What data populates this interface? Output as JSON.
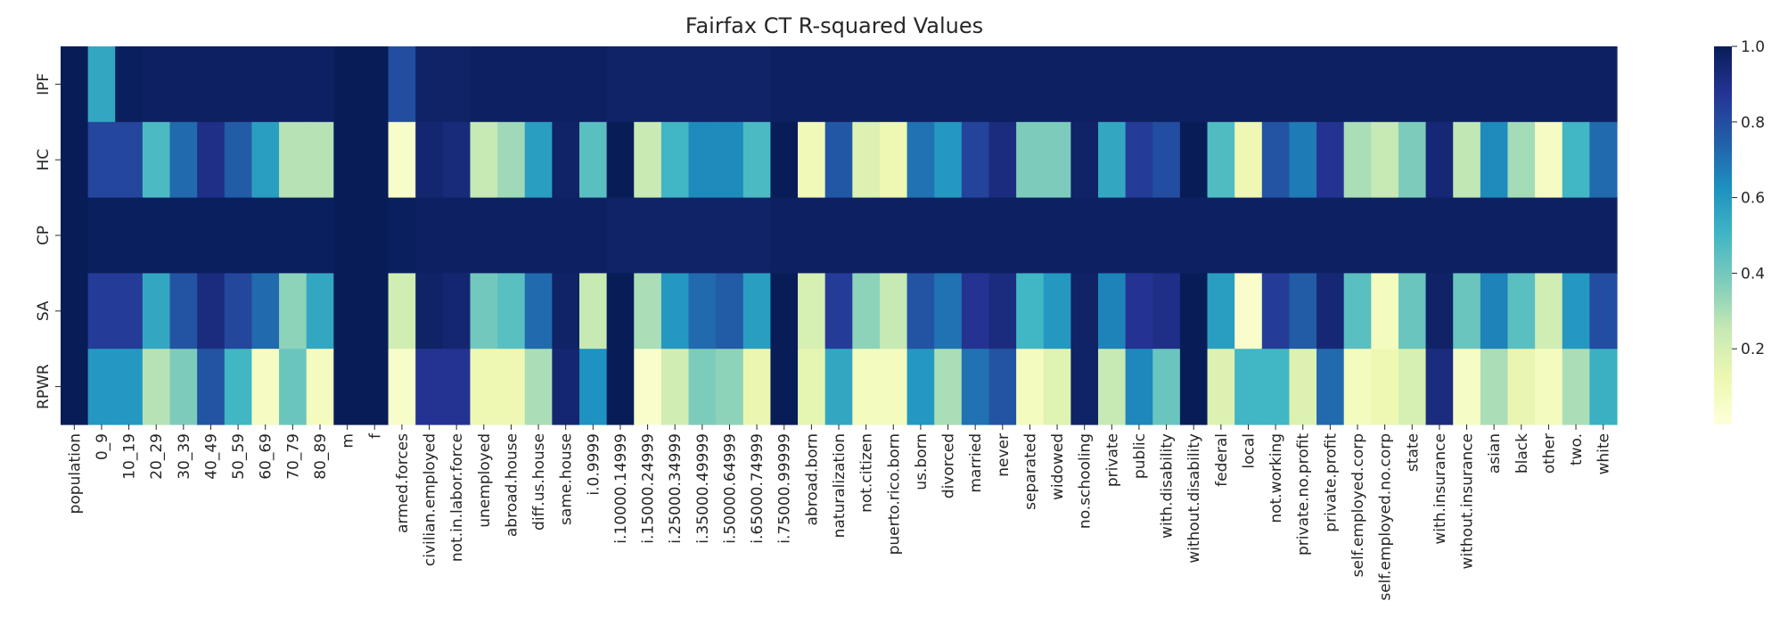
{
  "chart_data": {
    "type": "heatmap",
    "title": "Fairfax CT R-squared Values",
    "xlabel": "",
    "ylabel": "",
    "colormap": "YlGnBu",
    "vmin": 0.0,
    "vmax": 1.0,
    "rows": [
      "IPF",
      "HC",
      "CP",
      "SA",
      "RPWR"
    ],
    "columns": [
      "population",
      "0_9",
      "10_19",
      "20_29",
      "30_39",
      "40_49",
      "50_59",
      "60_69",
      "70_79",
      "80_89",
      "m",
      "f",
      "armed.forces",
      "civilian.employed",
      "not.in.labor.force",
      "unemployed",
      "abroad.house",
      "diff.us.house",
      "same.house",
      "i.0.9999",
      "i.10000.14999",
      "i.15000.24999",
      "i.25000.34999",
      "i.35000.49999",
      "i.50000.64999",
      "i.65000.74999",
      "i.75000.99999",
      "abroad.born",
      "naturalization",
      "not.citizen",
      "puerto.rico.born",
      "us.born",
      "divorced",
      "married",
      "never",
      "separated",
      "widowed",
      "no.schooling",
      "private",
      "public",
      "with.disability",
      "without.disability",
      "federal",
      "local",
      "not.working",
      "private.no.profit",
      "private.profit",
      "self.employed.corp",
      "self.employed.no.corp",
      "state",
      "with.insurance",
      "without.insurance",
      "asian",
      "black",
      "other",
      "two.",
      "white"
    ],
    "values": [
      [
        1.0,
        0.55,
        0.99,
        0.98,
        0.98,
        0.98,
        0.98,
        0.98,
        0.98,
        0.98,
        1.0,
        1.0,
        0.8,
        0.97,
        0.97,
        0.98,
        0.98,
        0.98,
        0.98,
        0.98,
        0.97,
        0.97,
        0.97,
        0.97,
        0.97,
        0.97,
        0.98,
        0.98,
        0.98,
        0.98,
        0.98,
        0.98,
        0.98,
        0.98,
        0.98,
        0.98,
        0.98,
        0.98,
        0.98,
        0.98,
        0.98,
        0.98,
        0.98,
        0.98,
        0.98,
        0.98,
        0.98,
        0.98,
        0.98,
        0.98,
        0.98,
        0.98,
        0.98,
        0.98,
        0.98,
        0.98,
        0.98
      ],
      [
        1.0,
        0.82,
        0.82,
        0.48,
        0.72,
        0.9,
        0.76,
        0.58,
        0.28,
        0.28,
        1.0,
        1.0,
        0.05,
        0.95,
        0.93,
        0.25,
        0.32,
        0.58,
        0.97,
        0.45,
        1.0,
        0.24,
        0.5,
        0.64,
        0.64,
        0.48,
        1.0,
        0.1,
        0.77,
        0.18,
        0.12,
        0.7,
        0.6,
        0.83,
        0.92,
        0.38,
        0.38,
        0.97,
        0.55,
        0.85,
        0.8,
        1.0,
        0.47,
        0.12,
        0.78,
        0.68,
        0.88,
        0.3,
        0.25,
        0.38,
        0.94,
        0.26,
        0.64,
        0.31,
        0.07,
        0.5,
        0.72
      ],
      [
        1.0,
        0.99,
        0.99,
        0.99,
        0.99,
        0.99,
        0.99,
        0.99,
        0.99,
        0.99,
        1.0,
        1.0,
        0.99,
        0.98,
        0.98,
        0.98,
        0.98,
        0.98,
        0.98,
        0.98,
        0.97,
        0.97,
        0.97,
        0.97,
        0.97,
        0.97,
        0.98,
        0.98,
        0.98,
        0.98,
        0.98,
        0.98,
        0.98,
        0.98,
        0.98,
        0.98,
        0.98,
        0.98,
        0.98,
        0.98,
        0.98,
        0.98,
        0.98,
        0.98,
        0.98,
        0.98,
        0.98,
        0.98,
        0.98,
        0.98,
        0.98,
        0.98,
        0.98,
        0.98,
        0.98,
        0.98,
        0.98
      ],
      [
        1.0,
        0.85,
        0.85,
        0.55,
        0.78,
        0.92,
        0.82,
        0.72,
        0.35,
        0.55,
        1.0,
        1.0,
        0.22,
        0.97,
        0.95,
        0.4,
        0.45,
        0.72,
        0.97,
        0.25,
        1.0,
        0.3,
        0.6,
        0.72,
        0.76,
        0.58,
        1.0,
        0.2,
        0.85,
        0.35,
        0.25,
        0.78,
        0.7,
        0.88,
        0.92,
        0.5,
        0.6,
        0.97,
        0.66,
        0.88,
        0.9,
        1.0,
        0.58,
        0.04,
        0.85,
        0.76,
        0.94,
        0.45,
        0.08,
        0.42,
        0.97,
        0.42,
        0.66,
        0.45,
        0.22,
        0.6,
        0.8
      ],
      [
        1.0,
        0.6,
        0.6,
        0.28,
        0.38,
        0.78,
        0.5,
        0.07,
        0.42,
        0.08,
        1.0,
        1.0,
        0.05,
        0.88,
        0.88,
        0.12,
        0.12,
        0.3,
        0.95,
        0.62,
        1.0,
        0.04,
        0.22,
        0.38,
        0.35,
        0.13,
        1.0,
        0.15,
        0.55,
        0.08,
        0.08,
        0.6,
        0.3,
        0.7,
        0.78,
        0.08,
        0.17,
        0.97,
        0.25,
        0.65,
        0.42,
        1.0,
        0.18,
        0.5,
        0.5,
        0.18,
        0.72,
        0.08,
        0.12,
        0.2,
        0.92,
        0.06,
        0.3,
        0.14,
        0.08,
        0.3,
        0.52
      ]
    ],
    "colorbar": {
      "ticks": [
        0.2,
        0.4,
        0.6,
        0.8,
        1.0
      ],
      "labels": [
        "0.2",
        "0.4",
        "0.6",
        "0.8",
        "1.0"
      ]
    },
    "grid": false,
    "legend": "right"
  }
}
